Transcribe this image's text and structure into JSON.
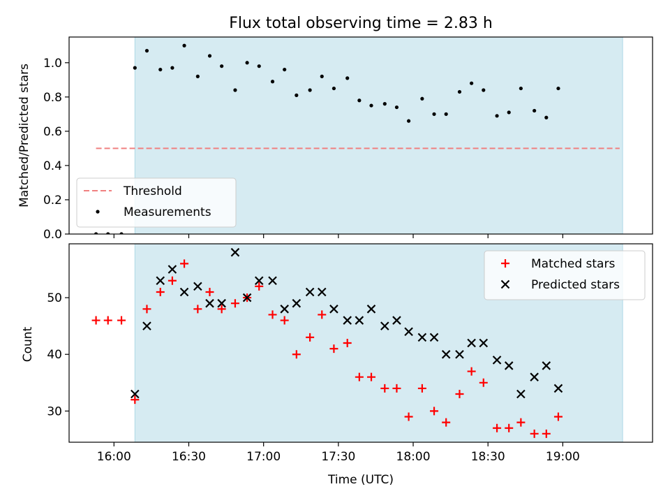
{
  "chart_data": [
    {
      "type": "scatter",
      "title": "Flux total observing time = 2.83 h",
      "xlabel": "",
      "ylabel": "Matched/Predicted stars",
      "xlim": [
        15.7,
        19.6
      ],
      "ylim": [
        0,
        1.15
      ],
      "grid": false,
      "legend_position": "lower-left",
      "shaded_region": {
        "x_start": 16.14,
        "x_end": 19.4,
        "color": "#add8e6"
      },
      "yticks": [
        {
          "value": 0.0,
          "label": "0.0"
        },
        {
          "value": 0.2,
          "label": "0.2"
        },
        {
          "value": 0.4,
          "label": "0.4"
        },
        {
          "value": 0.6,
          "label": "0.6"
        },
        {
          "value": 0.8,
          "label": "0.8"
        },
        {
          "value": 1.0,
          "label": "1.0"
        }
      ],
      "xticks": [
        16.0,
        16.5,
        17.0,
        17.5,
        18.0,
        18.5,
        19.0
      ],
      "series": [
        {
          "name": "Threshold",
          "kind": "dashed-line",
          "color": "#f08080",
          "x": [
            15.88,
            19.38
          ],
          "y": [
            0.5,
            0.5
          ]
        },
        {
          "name": "Measurements",
          "kind": "dot",
          "color": "#000000",
          "x": [
            15.88,
            15.96,
            16.05,
            16.14,
            16.22,
            16.31,
            16.39,
            16.47,
            16.56,
            16.64,
            16.72,
            16.81,
            16.89,
            16.97,
            17.06,
            17.14,
            17.22,
            17.31,
            17.39,
            17.47,
            17.56,
            17.64,
            17.72,
            17.81,
            17.89,
            17.97,
            18.06,
            18.14,
            18.22,
            18.31,
            18.39,
            18.47,
            18.56,
            18.64,
            18.72,
            18.81,
            18.89,
            18.97
          ],
          "y": [
            0.0,
            0.0,
            0.0,
            0.97,
            1.07,
            0.96,
            0.97,
            1.1,
            0.92,
            1.04,
            0.98,
            0.84,
            1.0,
            0.98,
            0.89,
            0.96,
            0.81,
            0.84,
            0.92,
            0.85,
            0.91,
            0.78,
            0.75,
            0.76,
            0.74,
            0.66,
            0.79,
            0.7,
            0.7,
            0.83,
            0.88,
            0.84,
            0.69,
            0.71,
            0.85,
            0.72,
            0.68,
            0.85
          ]
        }
      ]
    },
    {
      "type": "scatter",
      "title": "",
      "xlabel": "Time (UTC)",
      "ylabel": "Count",
      "xlim": [
        15.7,
        19.6
      ],
      "ylim": [
        24.5,
        59.5
      ],
      "grid": false,
      "legend_position": "top-right",
      "shaded_region": {
        "x_start": 16.14,
        "x_end": 19.4,
        "color": "#add8e6"
      },
      "yticks": [
        {
          "value": 30,
          "label": "30"
        },
        {
          "value": 40,
          "label": "40"
        },
        {
          "value": 50,
          "label": "50"
        }
      ],
      "xticks": [
        {
          "value": 16.0,
          "label": "16:00"
        },
        {
          "value": 16.5,
          "label": "16:30"
        },
        {
          "value": 17.0,
          "label": "17:00"
        },
        {
          "value": 17.5,
          "label": "17:30"
        },
        {
          "value": 18.0,
          "label": "18:00"
        },
        {
          "value": 18.5,
          "label": "18:30"
        },
        {
          "value": 19.0,
          "label": "19:00"
        }
      ],
      "series": [
        {
          "name": "Matched stars",
          "kind": "plus",
          "color": "#ff0000",
          "x": [
            15.88,
            15.96,
            16.05,
            16.14,
            16.22,
            16.31,
            16.39,
            16.47,
            16.56,
            16.64,
            16.72,
            16.81,
            16.89,
            16.97,
            17.06,
            17.14,
            17.22,
            17.31,
            17.39,
            17.47,
            17.56,
            17.64,
            17.72,
            17.81,
            17.89,
            17.97,
            18.06,
            18.14,
            18.22,
            18.31,
            18.39,
            18.47,
            18.56,
            18.64,
            18.72,
            18.81,
            18.89,
            18.97
          ],
          "y": [
            46,
            46,
            46,
            32,
            48,
            51,
            53,
            56,
            48,
            51,
            48,
            49,
            50,
            52,
            47,
            46,
            40,
            43,
            47,
            41,
            42,
            36,
            36,
            34,
            34,
            29,
            34,
            30,
            28,
            33,
            37,
            35,
            27,
            27,
            28,
            26,
            26,
            29
          ]
        },
        {
          "name": "Predicted stars",
          "kind": "cross",
          "color": "#000000",
          "x": [
            16.14,
            16.22,
            16.31,
            16.39,
            16.47,
            16.56,
            16.64,
            16.72,
            16.81,
            16.89,
            16.97,
            17.06,
            17.14,
            17.22,
            17.31,
            17.39,
            17.47,
            17.56,
            17.64,
            17.72,
            17.81,
            17.89,
            17.97,
            18.06,
            18.14,
            18.22,
            18.31,
            18.39,
            18.47,
            18.56,
            18.64,
            18.72,
            18.81,
            18.89,
            18.97
          ],
          "y": [
            33,
            45,
            53,
            55,
            51,
            52,
            49,
            49,
            58,
            50,
            53,
            53,
            48,
            49,
            51,
            51,
            48,
            46,
            46,
            48,
            45,
            46,
            44,
            43,
            43,
            40,
            40,
            42,
            42,
            39,
            38,
            33,
            36,
            38,
            34
          ]
        }
      ]
    }
  ]
}
